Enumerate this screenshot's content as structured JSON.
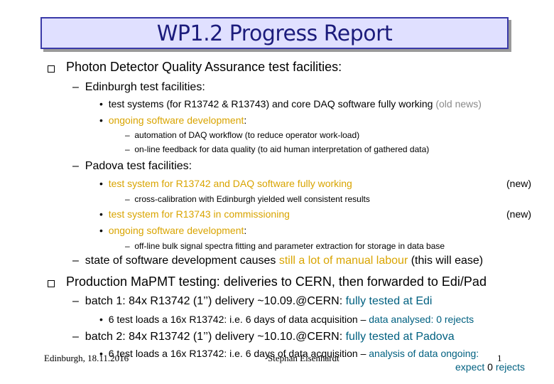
{
  "title": "WP1.2 Progress Report",
  "b1": {
    "heading": "Photon Detector Quality Assurance test facilities:",
    "edi": {
      "heading": "Edinburgh test facilities:",
      "p1_main": "test systems (for R13742 & R13743) and core DAQ software fully working",
      "p1_grey": "(old news)",
      "p2_main": "ongoing software development",
      "p2_colon": ":",
      "s1": "automation of DAQ workflow (to reduce operator work-load)",
      "s2": "on-line feedback for data quality (to aid human interpretation of gathered data)"
    },
    "pad": {
      "heading": "Padova test facilities:",
      "p1": "test system for R13742 and DAQ software fully working",
      "p1_tag": "(new)",
      "s1": "cross-calibration with Edinburgh yielded well consistent results",
      "p2": "test system for R13743 in commissioning",
      "p2_tag": "(new)",
      "p3_main": "ongoing software development",
      "p3_colon": ":",
      "s2": "off-line bulk signal spectra fitting and parameter extraction for storage in data base"
    },
    "state": {
      "pre": "state of software development causes ",
      "highlight": "still a lot of manual labour",
      "post": " (this will ease)"
    }
  },
  "b2": {
    "heading": "Production MaPMT testing: deliveries to CERN, then forwarded to Edi/Pad",
    "batch1": {
      "main": "batch 1: 84x R13742 (1’’) delivery ~10.09.@CERN: ",
      "status": "fully tested at Edi"
    },
    "batch1_sub": {
      "main": "6 test loads a 16x R13742: i.e. 6 days of data acquisition – ",
      "status": "data analysed: 0 rejects"
    },
    "batch2": {
      "main": "batch 2: 84x R13742 (1’’) delivery ~10.10.@CERN: ",
      "status": "fully tested at Padova"
    },
    "batch2_sub": {
      "main": "6 test loads a 16x R13742: i.e. 6 days of data acquisition – ",
      "status1": "analysis of data ongoing:",
      "status2_pre": "expect ",
      "status2_num": "0",
      "status2_post": " rejects"
    }
  },
  "footer": {
    "left": "Edinburgh, 18.11.2016",
    "center": "Stephan Eisenhardt",
    "page": "1"
  },
  "colors": {
    "title_text": "#1c1c7c",
    "title_bg": "#e0e0ff",
    "highlight": "#d9a400",
    "status": "#006080",
    "old": "#8a8a8a"
  }
}
